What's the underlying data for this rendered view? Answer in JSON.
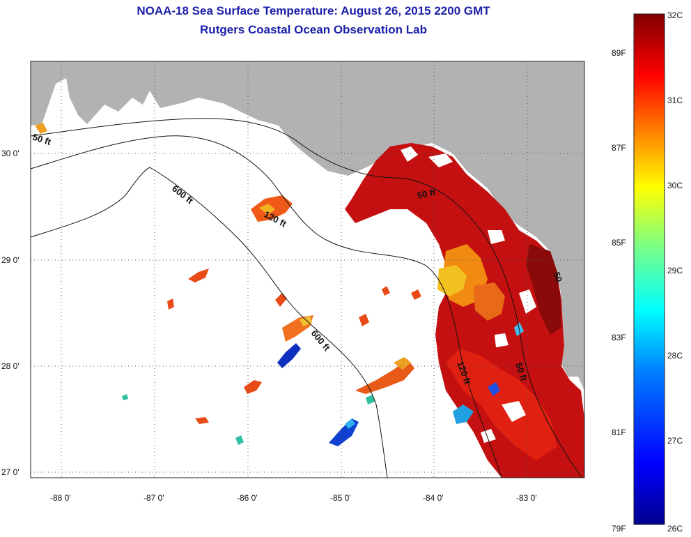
{
  "title": {
    "line1": "NOAA-18 Sea Surface Temperature:  August 26, 2015 2200 GMT",
    "line2": "Rutgers Coastal Ocean Observation Lab"
  },
  "map": {
    "lon_labels": [
      "-88 0'",
      "-87 0'",
      "-86 0'",
      "-85 0'",
      "-84 0'",
      "-83 0'"
    ],
    "lat_labels": [
      "30 0'",
      "29 0'",
      "28 0'",
      "27 0'"
    ],
    "depth_labels": [
      "50 ft",
      "600 ft",
      "120 ft",
      "50 ft",
      "600 ft",
      "120 ft",
      "50 ft",
      "50"
    ],
    "colors": {
      "land": "#b2b2b2",
      "ocean_nodata": "#ffffff"
    }
  },
  "colorbar": {
    "celsius": [
      "32C",
      "31C",
      "30C",
      "29C",
      "28C",
      "27C",
      "26C"
    ],
    "fahrenheit": [
      "89F",
      "87F",
      "85F",
      "83F",
      "81F",
      "79F"
    ],
    "colors": [
      "#00008f",
      "#0000ff",
      "#0080ff",
      "#00ffff",
      "#80ff80",
      "#ffff00",
      "#ff8000",
      "#ff0000",
      "#800000"
    ]
  }
}
